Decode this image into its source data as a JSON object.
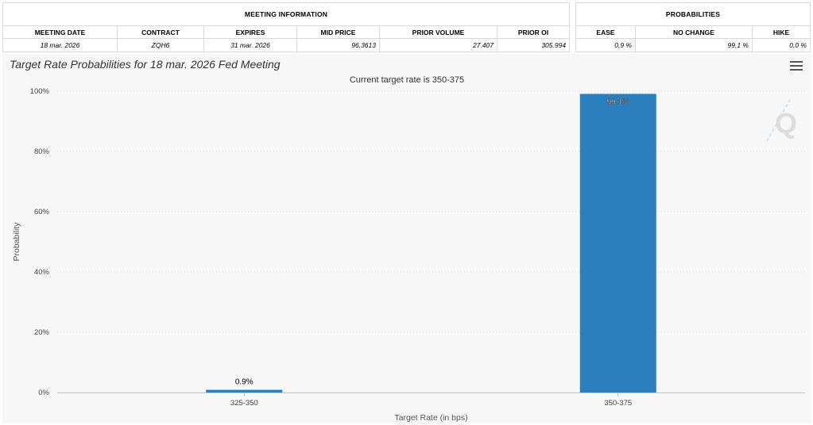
{
  "meeting_info": {
    "group_title": "MEETING INFORMATION",
    "headers": [
      "MEETING DATE",
      "CONTRACT",
      "EXPIRES",
      "MID PRICE",
      "PRIOR VOLUME",
      "PRIOR OI"
    ],
    "values": [
      "18 mar. 2026",
      "ZQH6",
      "31 mar. 2026",
      "96,3613",
      "27.407",
      "305.994"
    ]
  },
  "probabilities": {
    "group_title": "PROBABILITIES",
    "headers": [
      "EASE",
      "NO CHANGE",
      "HIKE"
    ],
    "values": [
      "0,9 %",
      "99,1 %",
      "0,0 %"
    ]
  },
  "chart_data": {
    "type": "bar",
    "title": "Target Rate Probabilities for 18 mar. 2026 Fed Meeting",
    "subtitle": "Current target rate is 350-375",
    "xlabel": "Target Rate (in bps)",
    "ylabel": "Probability",
    "categories": [
      "325-350",
      "350-375"
    ],
    "values": [
      0.9,
      99.1
    ],
    "data_labels": [
      "0.9%",
      "99.1%"
    ],
    "ylim": [
      0,
      100
    ],
    "yticks": [
      "0%",
      "20%",
      "40%",
      "60%",
      "80%",
      "100%"
    ],
    "grid": true,
    "bar_color": "#2a7fbc",
    "legend": "none"
  },
  "watermark": {
    "text": "Q"
  },
  "menu": {
    "icon": "hamburger-menu-icon"
  }
}
